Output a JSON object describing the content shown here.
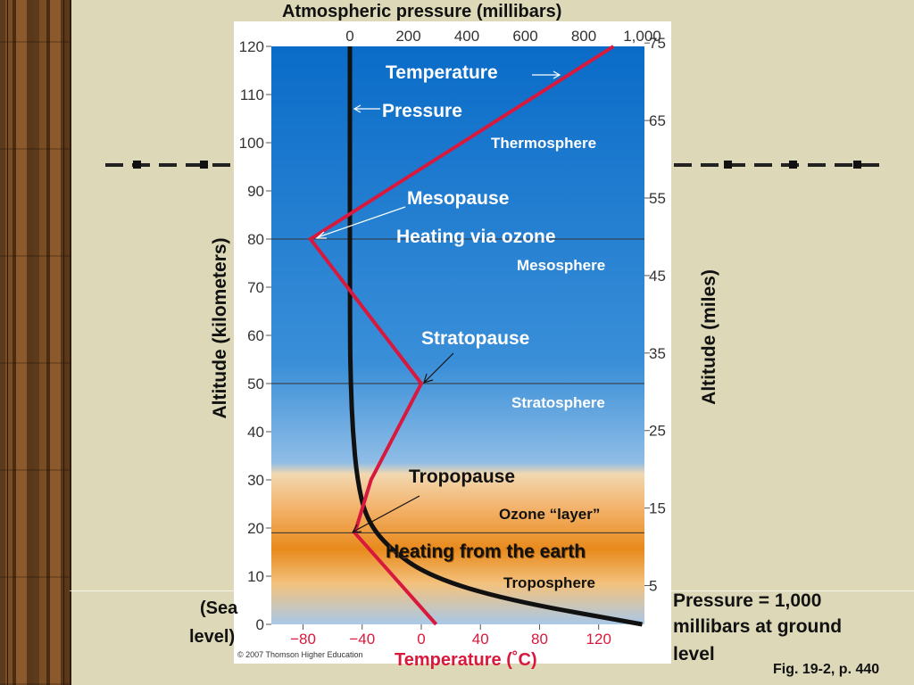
{
  "slide": {
    "top_title": "Atmospheric pressure (millibars)",
    "y_left_title": "Altitude (kilometers)",
    "y_right_title": "Altitude (miles)",
    "x_bottom_title": "Temperature (˚C)",
    "sea_level_1": "(Sea",
    "sea_level_2": "level)",
    "pressure_note": [
      "Pressure = 1,000",
      "millibars at ground",
      "level"
    ],
    "copyright": "© 2007 Thomson Higher Education",
    "fig_ref": "Fig. 19-2, p. 440"
  },
  "colors": {
    "background": "#ddd9b8",
    "sky_top": "#0a6cc8",
    "sky_mid": "#4a9ade",
    "troposphere_orange": "#e88a1c",
    "temperature_line": "#d8183c",
    "pressure_line": "#111111",
    "title_red": "#d8183c"
  },
  "chart_data": {
    "type": "line",
    "y_left": {
      "label": "Altitude (kilometers)",
      "ticks": [
        0,
        10,
        20,
        30,
        40,
        50,
        60,
        70,
        80,
        90,
        100,
        110,
        120
      ],
      "range": [
        0,
        120
      ]
    },
    "y_right": {
      "label": "Altitude (miles)",
      "ticks": [
        5,
        15,
        25,
        35,
        45,
        55,
        65,
        75
      ]
    },
    "x_bottom": {
      "label": "Temperature (˚C)",
      "ticks": [
        "−80",
        "−40",
        "0",
        "40",
        "80",
        "120"
      ],
      "values": [
        -80,
        -40,
        0,
        40,
        80,
        120
      ],
      "range": [
        -100,
        150
      ]
    },
    "x_top": {
      "label": "Atmospheric pressure (millibars)",
      "ticks": [
        "0",
        "200",
        "400",
        "600",
        "800",
        "1,000"
      ],
      "values": [
        0,
        200,
        400,
        600,
        800,
        1000
      ]
    },
    "series": [
      {
        "name": "Temperature",
        "axis": "temperature",
        "points": [
          [
            10,
            0
          ],
          [
            -45,
            19
          ],
          [
            -34,
            30
          ],
          [
            0,
            50
          ],
          [
            -75,
            80
          ],
          [
            130,
            120
          ]
        ]
      },
      {
        "name": "Pressure",
        "axis": "pressure",
        "points": [
          [
            1000,
            0
          ],
          [
            540,
            5
          ],
          [
            270,
            10
          ],
          [
            130,
            16
          ],
          [
            55,
            22
          ],
          [
            25,
            30
          ],
          [
            10,
            40
          ],
          [
            3,
            50
          ],
          [
            0,
            60
          ],
          [
            0,
            120
          ]
        ]
      }
    ],
    "reference_lines_km": [
      19,
      50,
      80
    ],
    "layer_labels": [
      "Thermosphere",
      "Mesosphere",
      "Stratosphere",
      "Ozone “layer”",
      "Troposphere"
    ],
    "annotations": [
      "Temperature",
      "Pressure",
      "Mesopause",
      "Heating via ozone",
      "Stratopause",
      "Tropopause",
      "Heating from the earth"
    ]
  }
}
